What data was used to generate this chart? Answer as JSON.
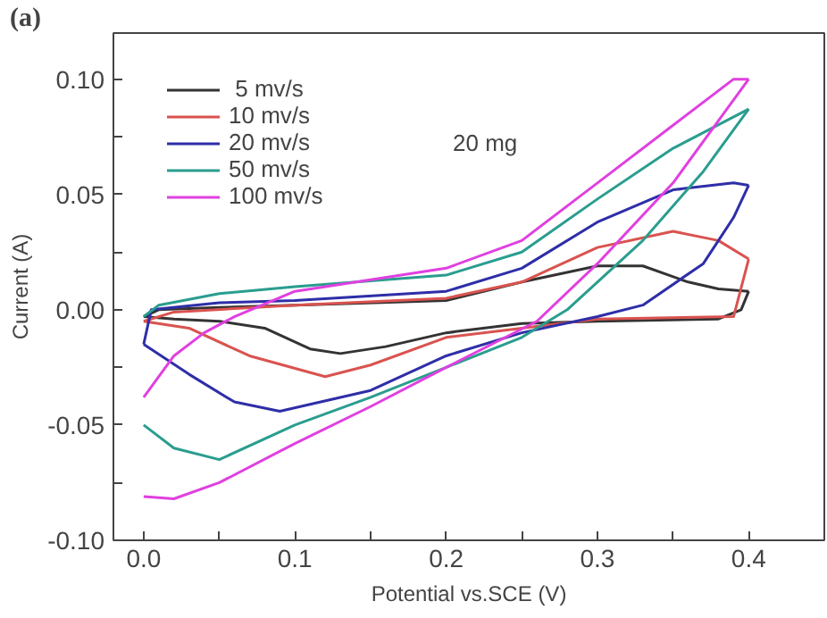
{
  "chart_data": {
    "type": "line",
    "xlabel": "Potential vs.SCE (V)",
    "ylabel": "Current (A)",
    "xlim": [
      -0.02,
      0.45
    ],
    "ylim": [
      -0.1,
      0.12
    ],
    "xticks": [
      {
        "value": 0.0,
        "label": "0.0"
      },
      {
        "value": 0.05,
        "label": null
      },
      0.1,
      {
        "value": 0.15,
        "label": null
      },
      0.2,
      {
        "value": 0.25,
        "label": null
      },
      0.3,
      {
        "value": 0.35,
        "label": null
      },
      0.4
    ],
    "yticks": [
      {
        "value": -0.1,
        "label": "-0.10"
      },
      {
        "value": -0.075,
        "label": null
      },
      {
        "value": -0.05,
        "label": "-0.05"
      },
      {
        "value": -0.025,
        "label": null
      },
      {
        "value": 0.0,
        "label": "0.00"
      },
      {
        "value": 0.025,
        "label": null
      },
      {
        "value": 0.05,
        "label": "0.05"
      },
      {
        "value": 0.075,
        "label": null
      },
      {
        "value": 0.1,
        "label": "0.10"
      }
    ],
    "grid": false,
    "legend": "top left",
    "marker": "none",
    "line_style": "solid",
    "annotations": [
      "(a)",
      "20 mg"
    ],
    "series": [
      {
        "name": " 5 mv/s",
        "color": "#333333",
        "x": [
          0,
          0.01,
          0.05,
          0.1,
          0.2,
          0.25,
          0.3,
          0.33,
          0.36,
          0.38,
          0.4
        ],
        "values": [
          -0.003,
          0,
          0.001,
          0.002,
          0.004,
          0.012,
          0.019,
          0.019,
          0.012,
          0.009,
          0.008
        ]
      },
      {
        "color": "#333333",
        "x": [
          0,
          0.02,
          0.05,
          0.08,
          0.11,
          0.13,
          0.16,
          0.2,
          0.25,
          0.3,
          0.38,
          0.395,
          0.4
        ],
        "values": [
          -0.003,
          -0.004,
          -0.005,
          -0.008,
          -0.017,
          -0.019,
          -0.016,
          -0.01,
          -0.006,
          -0.005,
          -0.004,
          0.0,
          0.008
        ]
      },
      {
        "name": "10 mv/s",
        "color": "#d9534f",
        "x": [
          0,
          0.02,
          0.1,
          0.2,
          0.25,
          0.3,
          0.35,
          0.38,
          0.4
        ],
        "values": [
          -0.005,
          -0.001,
          0.002,
          0.005,
          0.012,
          0.027,
          0.034,
          0.03,
          0.022
        ]
      },
      {
        "color": "#d9534f",
        "x": [
          0,
          0.03,
          0.07,
          0.12,
          0.15,
          0.2,
          0.3,
          0.39,
          0.4
        ],
        "values": [
          -0.005,
          -0.008,
          -0.02,
          -0.029,
          -0.024,
          -0.012,
          -0.004,
          -0.003,
          0.022
        ]
      },
      {
        "name": "20 mv/s",
        "color": "#2e2ea8",
        "x": [
          0,
          0.005,
          0.05,
          0.1,
          0.2,
          0.25,
          0.3,
          0.35,
          0.39,
          0.4
        ],
        "values": [
          -0.015,
          0,
          0.003,
          0.004,
          0.008,
          0.018,
          0.038,
          0.052,
          0.055,
          0.054
        ]
      },
      {
        "color": "#2e2ea8",
        "x": [
          0,
          0.03,
          0.06,
          0.09,
          0.15,
          0.2,
          0.25,
          0.3,
          0.33,
          0.37,
          0.39,
          0.4
        ],
        "values": [
          -0.015,
          -0.028,
          -0.04,
          -0.044,
          -0.035,
          -0.02,
          -0.01,
          -0.003,
          0.002,
          0.02,
          0.04,
          0.054
        ]
      },
      {
        "name": "50 mv/s",
        "color": "#2a9d8f",
        "x": [
          0,
          0.01,
          0.05,
          0.1,
          0.2,
          0.25,
          0.3,
          0.35,
          0.4
        ],
        "values": [
          -0.003,
          0.002,
          0.007,
          0.01,
          0.015,
          0.025,
          0.048,
          0.07,
          0.087
        ]
      },
      {
        "color": "#2a9d8f",
        "x": [
          0,
          0.02,
          0.05,
          0.1,
          0.15,
          0.2,
          0.25,
          0.28,
          0.33,
          0.37,
          0.4
        ],
        "values": [
          -0.05,
          -0.06,
          -0.065,
          -0.05,
          -0.038,
          -0.025,
          -0.012,
          0.0,
          0.03,
          0.06,
          0.087
        ]
      },
      {
        "name": "100 mv/s",
        "color": "#e040e0",
        "x": [
          0,
          0.02,
          0.04,
          0.06,
          0.1,
          0.15,
          0.2,
          0.25,
          0.3,
          0.35,
          0.39,
          0.4
        ],
        "values": [
          -0.038,
          -0.02,
          -0.01,
          -0.003,
          0.008,
          0.013,
          0.018,
          0.03,
          0.055,
          0.08,
          0.1,
          0.1
        ]
      },
      {
        "color": "#e040e0",
        "x": [
          0,
          0.02,
          0.05,
          0.1,
          0.15,
          0.2,
          0.26,
          0.3,
          0.35,
          0.38,
          0.4
        ],
        "values": [
          -0.081,
          -0.082,
          -0.075,
          -0.058,
          -0.042,
          -0.025,
          -0.005,
          0.02,
          0.055,
          0.082,
          0.1
        ]
      }
    ]
  }
}
